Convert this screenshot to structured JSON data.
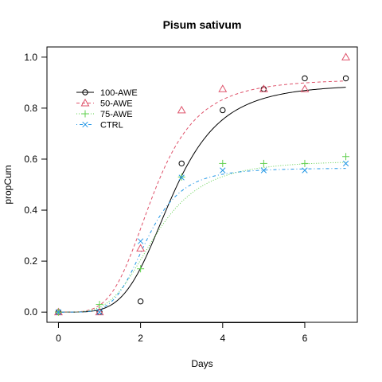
{
  "chart_data": {
    "type": "scatter",
    "title": "Pisum sativum",
    "xlabel": "Days",
    "ylabel": "propCum",
    "xlim": [
      -0.28,
      7.28
    ],
    "ylim": [
      -0.04,
      1.04
    ],
    "x_ticks": [
      "0",
      "2",
      "4",
      "6"
    ],
    "y_ticks": [
      "0.0",
      "0.2",
      "0.4",
      "0.6",
      "0.8",
      "1.0"
    ],
    "legend_position": "top-left",
    "grid": false,
    "series": [
      {
        "name": "100-AWE",
        "color": "#000000",
        "marker": "circle",
        "line": "solid",
        "x": [
          0,
          1,
          2,
          3,
          4,
          5,
          6,
          7
        ],
        "y": [
          0.0,
          0.0,
          0.042,
          0.583,
          0.792,
          0.875,
          0.917,
          0.917
        ],
        "curve": {
          "d": 0.895,
          "e": 2.75,
          "b": 4.5
        }
      },
      {
        "name": "50-AWE",
        "color": "#DF536B",
        "marker": "triangle",
        "line": "dashed",
        "x": [
          0,
          1,
          2,
          3,
          4,
          5,
          6,
          7
        ],
        "y": [
          0.0,
          0.0,
          0.25,
          0.792,
          0.875,
          0.875,
          0.875,
          1.0
        ],
        "curve": {
          "d": 0.915,
          "e": 2.3,
          "b": 4.2
        }
      },
      {
        "name": "75-AWE",
        "color": "#61D04F",
        "marker": "plus",
        "line": "dotted",
        "x": [
          0,
          1,
          2,
          3,
          4,
          5,
          6,
          7
        ],
        "y": [
          0.0,
          0.03,
          0.17,
          0.53,
          0.583,
          0.583,
          0.583,
          0.61
        ],
        "curve": {
          "d": 0.595,
          "e": 2.35,
          "b": 4.0
        }
      },
      {
        "name": "CTRL",
        "color": "#2297E6",
        "marker": "cross",
        "line": "dotdash",
        "x": [
          0,
          1,
          2,
          3,
          4,
          5,
          6,
          7
        ],
        "y": [
          0.0,
          0.0,
          0.278,
          0.528,
          0.556,
          0.556,
          0.556,
          0.583
        ],
        "curve": {
          "d": 0.565,
          "e": 2.15,
          "b": 5.0
        }
      }
    ]
  }
}
